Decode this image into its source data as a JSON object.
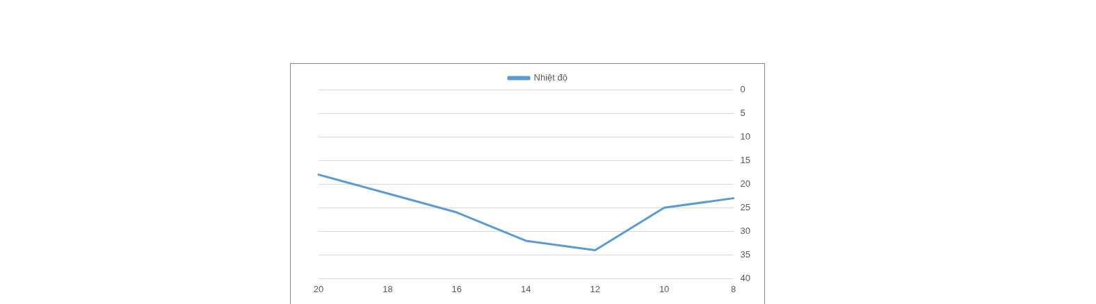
{
  "chart_data": {
    "type": "line",
    "categories": [
      "20",
      "18",
      "16",
      "14",
      "12",
      "10",
      "8"
    ],
    "series": [
      {
        "name": "Nhiệt độ",
        "color": "#5b9bd5",
        "values": [
          18,
          22,
          26,
          32,
          34,
          25,
          23
        ]
      }
    ],
    "ylim": [
      40,
      0
    ],
    "yticks": [
      0,
      5,
      10,
      15,
      20,
      25,
      30,
      35,
      40
    ],
    "grid": "y",
    "legend": "top",
    "marker": "none",
    "line_style": "solid"
  }
}
